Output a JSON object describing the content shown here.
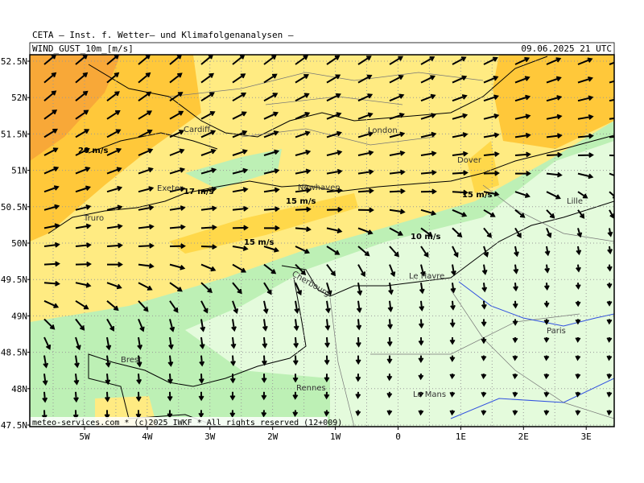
{
  "header": {
    "title": "CETA – Inst. f. Wetter– und Klimafolgenanalysen –",
    "field": "WIND_GUST_10m_[m/s]",
    "valid_time": "09.06.2025 21 UTC"
  },
  "axes": {
    "lat_labels": [
      "52.5N",
      "52N",
      "51.5N",
      "51N",
      "50.5N",
      "50N",
      "49.5N",
      "49N",
      "48.5N",
      "48N",
      "47.5N"
    ],
    "lon_labels": [
      "5W",
      "4W",
      "3W",
      "2W",
      "1W",
      "0",
      "1E",
      "2E",
      "3E"
    ]
  },
  "places": [
    "Cardiff",
    "London",
    "Dover",
    "Exeter",
    "Newhaven",
    "Truro",
    "Lille",
    "Cherbourg",
    "Le Havre",
    "Paris",
    "Brest",
    "Rennes",
    "Le Mans"
  ],
  "contour_labels": [
    "20 m/s",
    "17 m/s",
    "15 m/s",
    "15 m/s",
    "15 m/s",
    "10 m/s"
  ],
  "footer": "meteo-services.com * (c)2025 IWKF * All rights reserved (12+009)"
}
